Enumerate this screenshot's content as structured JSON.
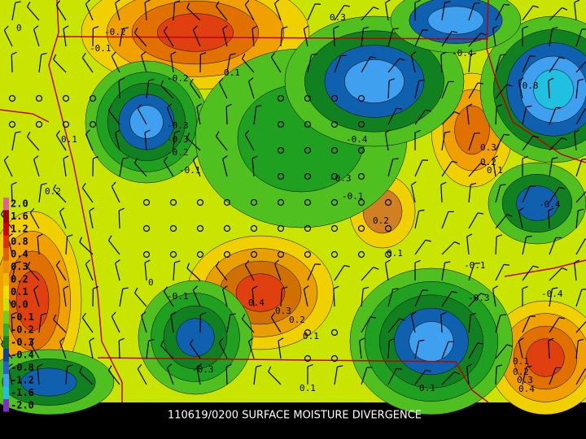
{
  "caption": "110619/0200 SURFACE MOISTURE DIVERGENCE",
  "legend": {
    "labels": [
      "2.0",
      "1.6",
      "1.2",
      "0.8",
      "0.4",
      "0.3",
      "0.2",
      "0.1",
      "0.0",
      "-0.1",
      "-0.2",
      "-0.3",
      "-0.4",
      "-0.8",
      "-1.2",
      "-1.6",
      "-2.0"
    ]
  },
  "contour_labels": [
    "-0.2",
    "-0.1",
    "0.3",
    "0.1",
    "-0.2",
    "-0.4",
    "-0.8",
    "0",
    "0.1",
    "0.2",
    "-0.3",
    "-0.2",
    "-0.1",
    "-0.4",
    "-0.3",
    "-0.1",
    "0.3",
    "0.2",
    "0.1",
    "-0.4",
    "0.2",
    "0.1",
    "0",
    "-0.1",
    "0.4",
    "0.3",
    "0.2",
    "0.1",
    "-0.3",
    "-0.1",
    "-0.3",
    "0.1",
    "0.2",
    "0.3",
    "0.1",
    "-0.4",
    "0.1",
    "0.4",
    "-0.3"
  ]
}
